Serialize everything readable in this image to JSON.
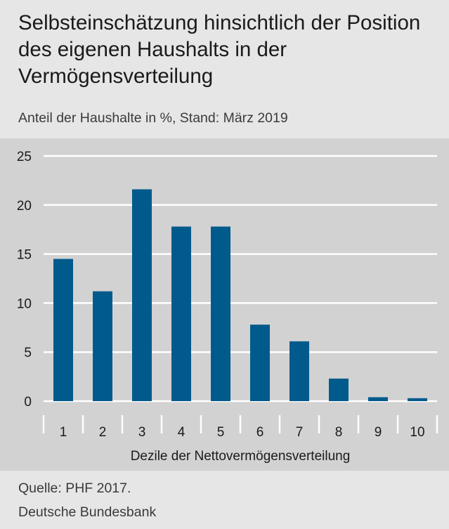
{
  "header": {
    "title": "Selbsteinschätzung hinsichtlich der Position des eigenen Haushalts in der Vermögensverteilung",
    "subtitle": "Anteil der Haushalte in %, Stand: März 2019"
  },
  "footer": {
    "source": "Quelle: PHF 2017.",
    "org": "Deutsche Bundesbank"
  },
  "chart_data": {
    "type": "bar",
    "title": "Selbsteinschätzung hinsichtlich der Position des eigenen Haushalts in der Vermögensverteilung",
    "subtitle": "Anteil der Haushalte in %, Stand: März 2019",
    "xlabel": "Dezile der Nettovermögensverteilung",
    "ylabel": "",
    "categories": [
      "1",
      "2",
      "3",
      "4",
      "5",
      "6",
      "7",
      "8",
      "9",
      "10"
    ],
    "values": [
      14.5,
      11.2,
      21.6,
      17.8,
      17.8,
      7.8,
      6.1,
      2.3,
      0.4,
      0.3
    ],
    "ylim": [
      0,
      25
    ],
    "yticks": [
      0,
      5,
      10,
      15,
      20,
      25
    ],
    "grid": true,
    "bar_color": "#005a8c"
  }
}
